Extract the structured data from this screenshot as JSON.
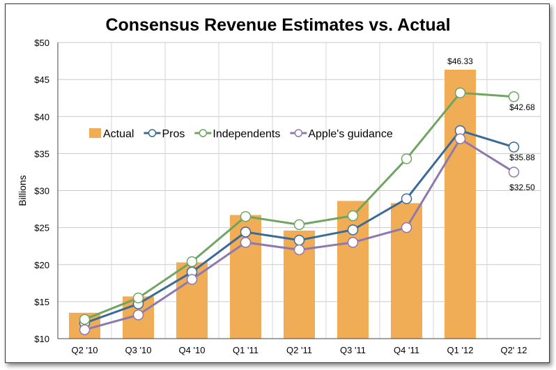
{
  "chart_data": {
    "type": "bar",
    "title": "Consensus Revenue Estimates vs. Actual",
    "xlabel": "",
    "ylabel": "Billions",
    "ylim": [
      10,
      50
    ],
    "yticks": [
      10,
      15,
      20,
      25,
      30,
      35,
      40,
      45,
      50
    ],
    "ytick_labels": [
      "$10",
      "$15",
      "$20",
      "$25",
      "$30",
      "$35",
      "$40",
      "$45",
      "$50"
    ],
    "categories": [
      "Q2 '10",
      "Q3 '10",
      "Q4 '10",
      "Q1 '11",
      "Q2 '11",
      "Q3 '11",
      "Q4 '11",
      "Q1 '12",
      "Q2' 12"
    ],
    "grid": true,
    "legend_position": "center-left",
    "series": [
      {
        "name": "Actual",
        "kind": "bar",
        "color": "#f0ad55",
        "values": [
          13.5,
          15.7,
          20.3,
          26.7,
          24.6,
          28.6,
          28.3,
          46.33,
          null
        ]
      },
      {
        "name": "Pros",
        "kind": "line",
        "color": "#3c6a96",
        "values": [
          12.1,
          14.7,
          19.0,
          24.4,
          23.3,
          24.7,
          28.9,
          38.1,
          35.88
        ]
      },
      {
        "name": "Independents",
        "kind": "line",
        "color": "#6fa463",
        "values": [
          12.6,
          15.5,
          20.4,
          26.5,
          25.4,
          26.6,
          34.3,
          43.2,
          42.68
        ]
      },
      {
        "name": "Apple's guidance",
        "kind": "line",
        "color": "#8f78ad",
        "values": [
          11.2,
          13.2,
          18.0,
          23.0,
          22.0,
          23.0,
          25.0,
          37.0,
          32.5
        ]
      }
    ],
    "annotations": [
      {
        "text": "$46.33"
      },
      {
        "text": "$42.68"
      },
      {
        "text": "$35.88"
      },
      {
        "text": "$32.50"
      }
    ]
  }
}
